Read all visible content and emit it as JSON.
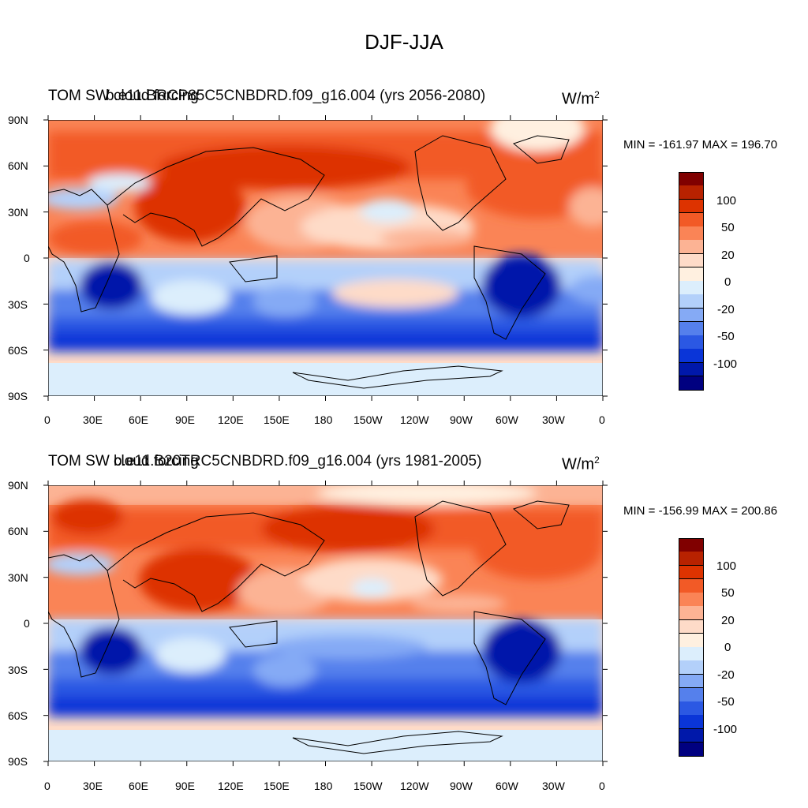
{
  "main_title": "DJF-JJA",
  "units_base": "W/m",
  "units_sup": "2",
  "lat_labels": [
    "90N",
    "60N",
    "30N",
    "0",
    "30S",
    "60S",
    "90S"
  ],
  "lon_labels": [
    "0",
    "30E",
    "60E",
    "90E",
    "120E",
    "150E",
    "180",
    "150W",
    "120W",
    "90W",
    "60W",
    "30W",
    "0"
  ],
  "colorbar_labels": [
    "100",
    "50",
    "20",
    "0",
    "-20",
    "-50",
    "-100"
  ],
  "colorbar_colors": [
    "#800000",
    "#b82200",
    "#dd3300",
    "#f25a26",
    "#fa8456",
    "#fcb394",
    "#fedbc8",
    "#fff0e0",
    "#dceefc",
    "#b3d0fa",
    "#85aaf5",
    "#5580ec",
    "#2b58e3",
    "#0a35d8",
    "#0018aa",
    "#000080"
  ],
  "panels": [
    {
      "title_left": "TOM SW cloud forcing",
      "title_center": "b.e11.BRCP85C5CNBDRD.f09_g16.004 (yrs 2056-2080)",
      "minmax": "MIN = -161.97  MAX = 196.70"
    },
    {
      "title_left": "TOM SW cloud forcing",
      "title_center": "b.e11.B20TRC5CNBDRD.f09_g16.004 (yrs 1981-2005)",
      "minmax": "MIN = -156.99  MAX = 200.86"
    }
  ]
}
